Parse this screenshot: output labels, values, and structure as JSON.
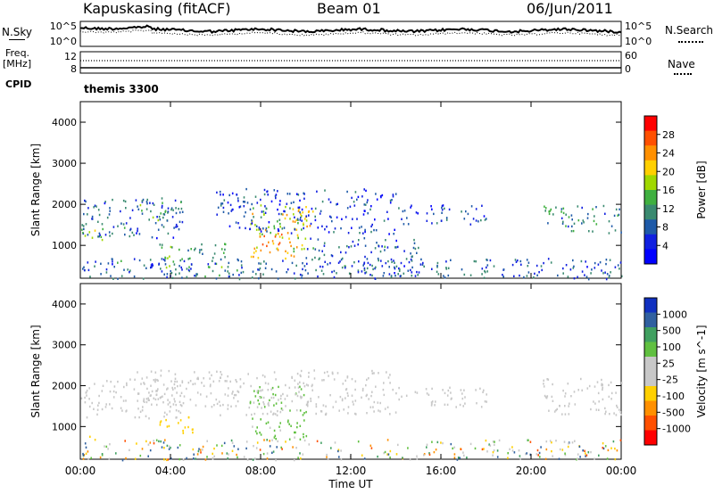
{
  "header": {
    "station": "Kapuskasing (fitACF)",
    "beam": "Beam 01",
    "date": "06/Jun/2011"
  },
  "noise_panel": {
    "left_label": "N.Sky",
    "left_ticks": [
      "10^5",
      "10^0"
    ],
    "right_label": "N.Search",
    "right_ticks": [
      "10^5",
      "10^0"
    ]
  },
  "freq_panel": {
    "left_label_line1": "Freq.",
    "left_label_line2": "[MHz]",
    "left_ticks": [
      "12",
      "8"
    ],
    "right_label": "Nave",
    "right_ticks": [
      "60",
      "0"
    ]
  },
  "cpid": {
    "label": "CPID",
    "value": "themis 3300"
  },
  "chart_data": [
    {
      "type": "heatmap",
      "name": "power-panel",
      "ylabel": "Slant Range [km]",
      "xlabel": "",
      "colorbar_label": "Power [dB]",
      "colorbar_ticks": [
        "28",
        "24",
        "20",
        "16",
        "12",
        "8",
        "4"
      ],
      "colorbar_colors": [
        "#ff0000",
        "#ff5000",
        "#ff9000",
        "#ffd000",
        "#a0d800",
        "#40b040",
        "#3a8a70",
        "#1e5aa8",
        "#1020e0",
        "#0000ff"
      ],
      "x_ticks": [
        "00:00",
        "04:00",
        "08:00",
        "12:00",
        "16:00",
        "20:00",
        "00:00"
      ],
      "xlim": [
        0,
        24
      ],
      "y_ticks": [
        "1000",
        "2000",
        "3000",
        "4000"
      ],
      "ylim": [
        200,
        4500
      ],
      "scatter_regions": [
        {
          "t0": 0.0,
          "t1": 4.6,
          "r0": 1200,
          "r1": 2200,
          "value": 8
        },
        {
          "t0": 0.0,
          "t1": 1.0,
          "r0": 1100,
          "r1": 1500,
          "value": 16
        },
        {
          "t0": 2.5,
          "t1": 4.5,
          "r0": 1600,
          "r1": 2100,
          "value": 12
        },
        {
          "t0": 3.5,
          "t1": 6.5,
          "r0": 250,
          "r1": 1100,
          "value": 12
        },
        {
          "t0": 7.5,
          "t1": 10.0,
          "r0": 700,
          "r1": 2000,
          "value": 20
        },
        {
          "t0": 8.0,
          "t1": 9.0,
          "r0": 900,
          "r1": 1400,
          "value": 24
        },
        {
          "t0": 9.3,
          "t1": 10.3,
          "r0": 1200,
          "r1": 2000,
          "value": 20
        },
        {
          "t0": 6.0,
          "t1": 14.0,
          "r0": 1300,
          "r1": 2400,
          "value": 6
        },
        {
          "t0": 10.0,
          "t1": 15.0,
          "r0": 300,
          "r1": 1200,
          "value": 8
        },
        {
          "t0": 14.0,
          "t1": 18.0,
          "r0": 1500,
          "r1": 2000,
          "value": 6
        },
        {
          "t0": 20.5,
          "t1": 24.0,
          "r0": 1300,
          "r1": 2000,
          "value": 10
        },
        {
          "t0": 0.0,
          "t1": 24.0,
          "r0": 200,
          "r1": 700,
          "value": 8
        }
      ]
    },
    {
      "type": "heatmap",
      "name": "velocity-panel",
      "ylabel": "Slant Range [km]",
      "xlabel": "Time UT",
      "colorbar_label": "Velocity [m s^-1]",
      "colorbar_ticks": [
        "1000",
        "500",
        "100",
        "25",
        "-25",
        "-100",
        "-500",
        "-1000"
      ],
      "colorbar_colors": [
        "#1030c0",
        "#3060a0",
        "#40a060",
        "#60c040",
        "#c8c8c8",
        "#c8c8c8",
        "#ffd000",
        "#ff9000",
        "#ff5000",
        "#ff0000"
      ],
      "x_ticks": [
        "00:00",
        "04:00",
        "08:00",
        "12:00",
        "16:00",
        "20:00",
        "00:00"
      ],
      "xlim": [
        0,
        24
      ],
      "y_ticks": [
        "1000",
        "2000",
        "3000",
        "4000"
      ],
      "ylim": [
        200,
        4500
      ],
      "scatter_regions": [
        {
          "t0": 0.0,
          "t1": 4.6,
          "r0": 1200,
          "r1": 2200,
          "value": 0
        },
        {
          "t0": 2.5,
          "t1": 6.5,
          "r0": 1500,
          "r1": 2400,
          "value": 0
        },
        {
          "t0": 3.5,
          "t1": 5.0,
          "r0": 800,
          "r1": 1300,
          "value": -300
        },
        {
          "t0": 0.3,
          "t1": 0.8,
          "r0": 700,
          "r1": 900,
          "value": -300
        },
        {
          "t0": 7.5,
          "t1": 10.0,
          "r0": 700,
          "r1": 2000,
          "value": 300
        },
        {
          "t0": 6.0,
          "t1": 14.0,
          "r0": 1300,
          "r1": 2400,
          "value": 0
        },
        {
          "t0": 14.0,
          "t1": 18.0,
          "r0": 1500,
          "r1": 2000,
          "value": 0
        },
        {
          "t0": 20.5,
          "t1": 24.0,
          "r0": 1300,
          "r1": 2200,
          "value": 0
        },
        {
          "t0": 0.0,
          "t1": 24.0,
          "r0": 200,
          "r1": 700,
          "value": 50
        }
      ]
    }
  ]
}
